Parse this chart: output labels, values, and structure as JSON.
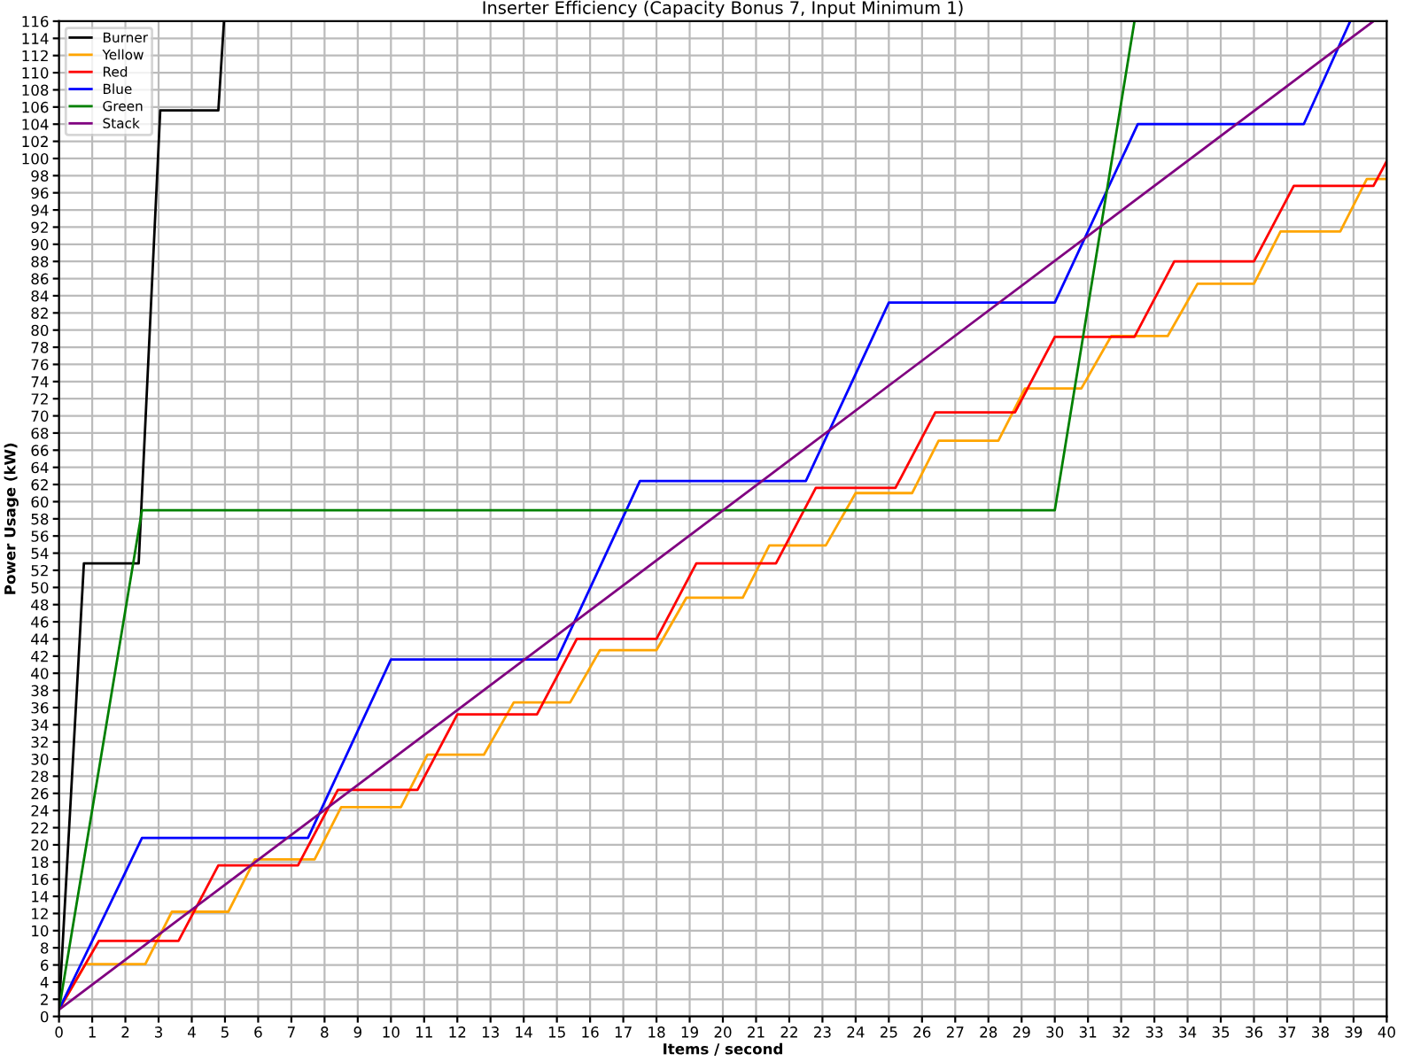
{
  "chart_data": {
    "type": "line",
    "title": "Inserter Efficiency (Capacity Bonus 7, Input Minimum 1)",
    "xlabel": "Items / second",
    "ylabel": "Power Usage (kW)",
    "xlim": [
      0,
      40
    ],
    "ylim": [
      0,
      116
    ],
    "xticks": [
      0,
      1,
      2,
      3,
      4,
      5,
      6,
      7,
      8,
      9,
      10,
      11,
      12,
      13,
      14,
      15,
      16,
      17,
      18,
      19,
      20,
      21,
      22,
      23,
      24,
      25,
      26,
      27,
      28,
      29,
      30,
      31,
      32,
      33,
      34,
      35,
      36,
      37,
      38,
      39,
      40
    ],
    "yticks": [
      0,
      2,
      4,
      6,
      8,
      10,
      12,
      14,
      16,
      18,
      20,
      22,
      24,
      26,
      28,
      30,
      32,
      34,
      36,
      38,
      40,
      42,
      44,
      46,
      48,
      50,
      52,
      54,
      56,
      58,
      60,
      62,
      64,
      66,
      68,
      70,
      72,
      74,
      76,
      78,
      80,
      82,
      84,
      86,
      88,
      90,
      92,
      94,
      96,
      98,
      100,
      102,
      104,
      106,
      108,
      110,
      112,
      114,
      116
    ],
    "grid": true,
    "legend": "top left",
    "marker": "none",
    "line_style": "solid",
    "series": [
      {
        "name": "Burner",
        "color": "#000000",
        "x": [
          0,
          0.75,
          2.4,
          3.05,
          4.8,
          4.97
        ],
        "values": [
          0.8,
          52.8,
          52.8,
          105.6,
          105.6,
          116
        ]
      },
      {
        "name": "Yellow",
        "color": "#ffa500",
        "x": [
          0,
          0.8,
          2.6,
          3.4,
          5.1,
          5.9,
          7.7,
          8.5,
          10.3,
          11.1,
          12.8,
          13.7,
          15.4,
          16.3,
          18,
          18.9,
          20.6,
          21.4,
          23.1,
          24,
          25.7,
          26.5,
          28.3,
          29.1,
          30.8,
          31.7,
          33.4,
          34.3,
          36,
          36.8,
          38.6,
          39.4,
          40
        ],
        "values": [
          0.8,
          6.1,
          6.1,
          12.2,
          12.2,
          18.3,
          18.3,
          24.4,
          24.4,
          30.5,
          30.5,
          36.6,
          36.6,
          42.7,
          42.7,
          48.8,
          48.8,
          54.9,
          54.9,
          61,
          61,
          67.1,
          67.1,
          73.2,
          73.2,
          79.3,
          79.3,
          85.4,
          85.4,
          91.5,
          91.5,
          97.6,
          97.6
        ]
      },
      {
        "name": "Red",
        "color": "#ff0000",
        "x": [
          0,
          1.2,
          3.6,
          4.8,
          7.2,
          8.4,
          10.8,
          12,
          14.4,
          15.6,
          18,
          19.2,
          21.6,
          22.8,
          25.2,
          26.4,
          28.8,
          30,
          32.4,
          33.6,
          36,
          37.2,
          39.6,
          40
        ],
        "values": [
          0.8,
          8.8,
          8.8,
          17.6,
          17.6,
          26.4,
          26.4,
          35.2,
          35.2,
          44,
          44,
          52.8,
          52.8,
          61.6,
          61.6,
          70.4,
          70.4,
          79.2,
          79.2,
          88,
          88,
          96.8,
          96.8,
          99.7
        ]
      },
      {
        "name": "Blue",
        "color": "#0000ff",
        "x": [
          0,
          2.5,
          7.5,
          10,
          15,
          17.5,
          22.5,
          25,
          30,
          32.5,
          37.5,
          38.9
        ],
        "values": [
          0.8,
          20.8,
          20.8,
          41.6,
          41.6,
          62.4,
          62.4,
          83.2,
          83.2,
          104,
          104,
          116
        ]
      },
      {
        "name": "Green",
        "color": "#008000",
        "x": [
          0,
          2.5,
          30,
          32.4
        ],
        "values": [
          0.8,
          59,
          59,
          116
        ]
      },
      {
        "name": "Stack",
        "color": "#800080",
        "x": [
          0,
          39.6
        ],
        "values": [
          0.8,
          116
        ]
      }
    ]
  }
}
